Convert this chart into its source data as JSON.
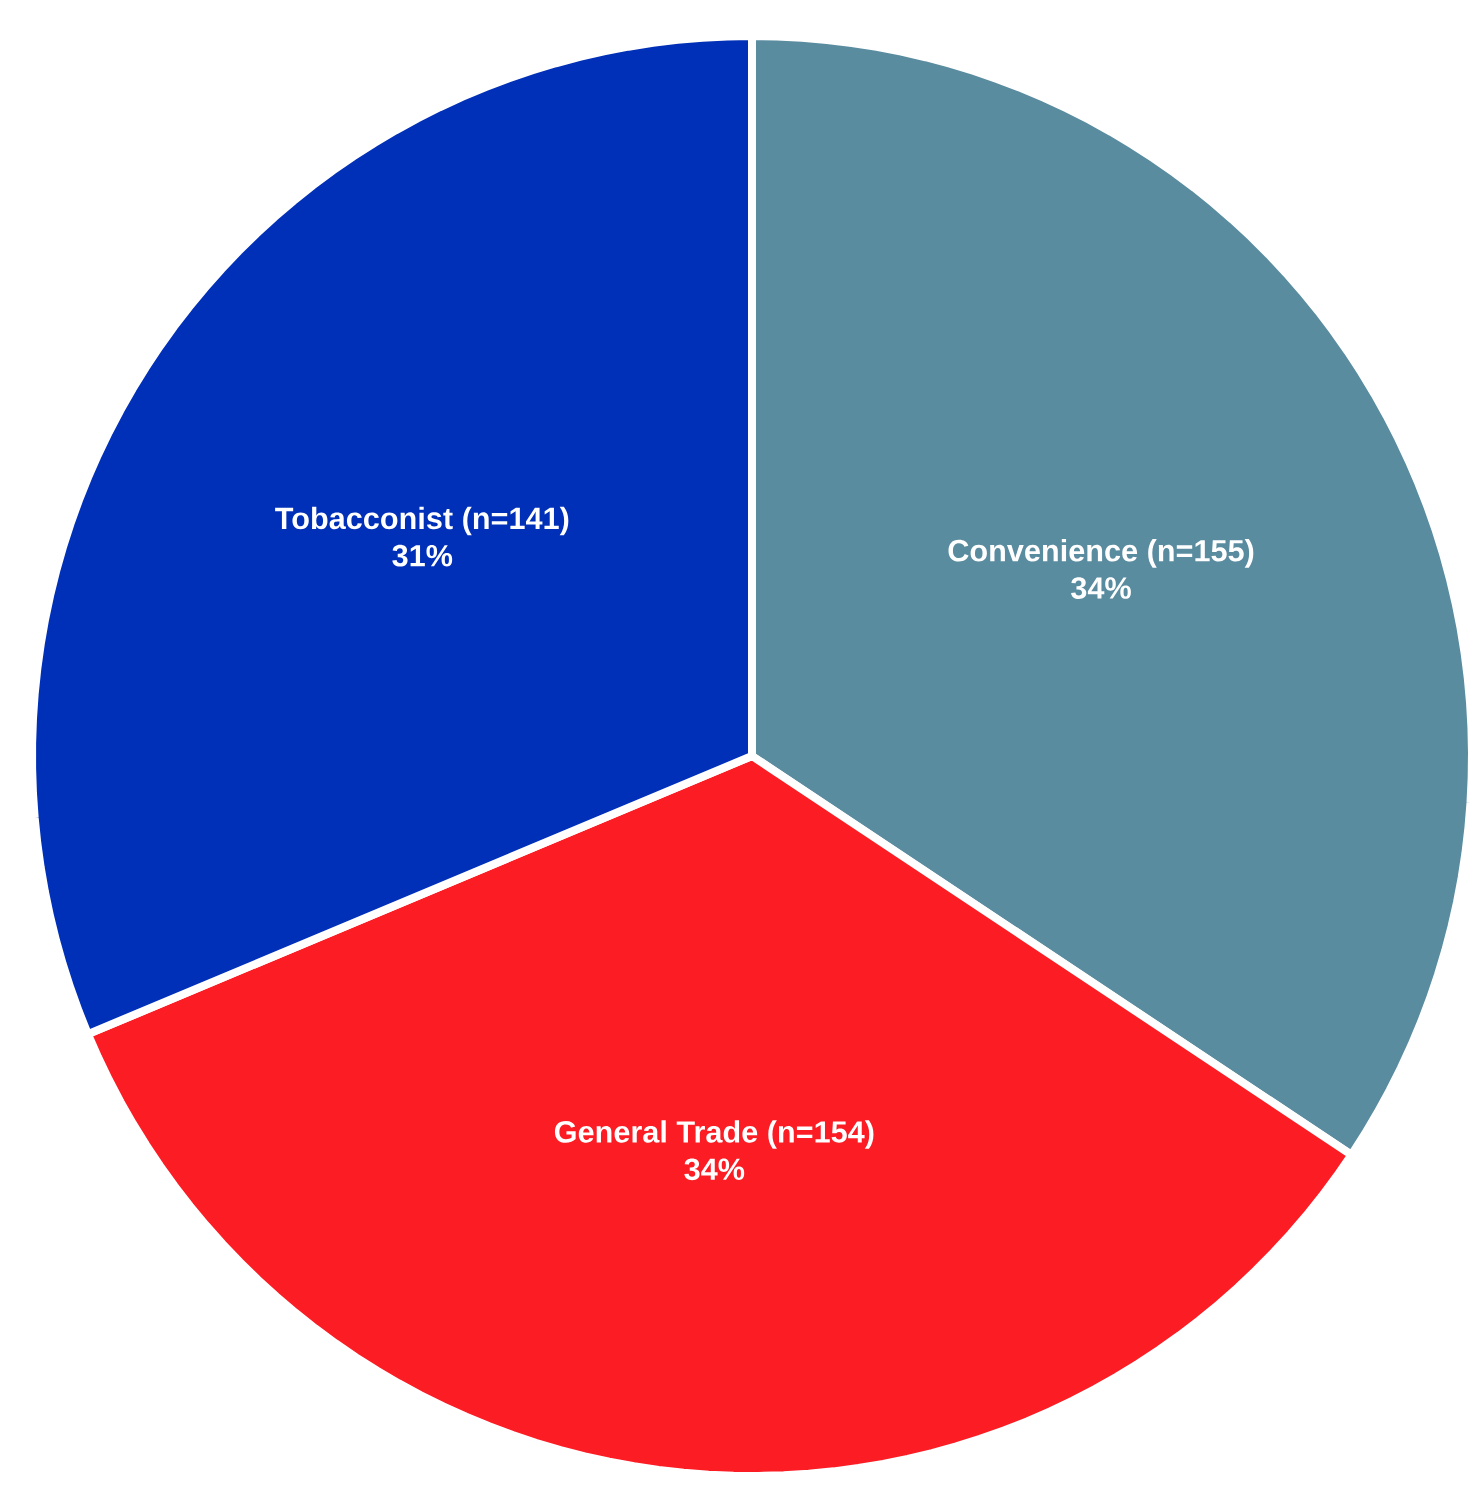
{
  "chart_data": {
    "type": "pie",
    "categories": [
      "Convenience (n=155)",
      "General Trade (n=154)",
      "Tobacconist (n=141)"
    ],
    "values": [
      34,
      34,
      31
    ],
    "value_labels": [
      "34%",
      "34%",
      "31%"
    ],
    "colors": [
      "#5a8ca0",
      "#fc1c24",
      "#0030b8"
    ]
  }
}
